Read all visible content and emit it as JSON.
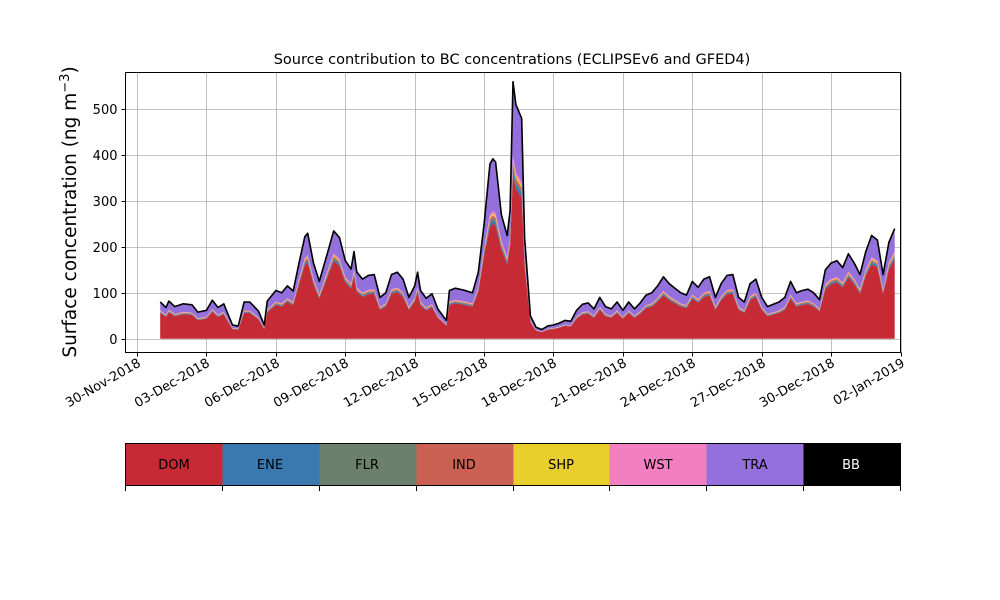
{
  "chart_data": {
    "type": "area",
    "title": "Source contribution to BC concentrations (ECLIPSEv6 and GFED4)",
    "ylabel_main": "Surface concentration (ng m",
    "ylabel_sup": "−3",
    "ylabel_close": ")",
    "xlabel": "",
    "xlim": [
      "2018-11-29T12:00",
      "2019-01-02T00:00"
    ],
    "ylim": [
      -30,
      580
    ],
    "grid": true,
    "stacked": true,
    "x_ticks": [
      "2018-11-30",
      "2018-12-03",
      "2018-12-06",
      "2018-12-09",
      "2018-12-12",
      "2018-12-15",
      "2018-12-18",
      "2018-12-21",
      "2018-12-24",
      "2018-12-27",
      "2018-12-30",
      "2019-01-02"
    ],
    "x_tick_labels": [
      "30-Nov-2018",
      "03-Dec-2018",
      "06-Dec-2018",
      "09-Dec-2018",
      "12-Dec-2018",
      "15-Dec-2018",
      "18-Dec-2018",
      "21-Dec-2018",
      "24-Dec-2018",
      "27-Dec-2018",
      "30-Dec-2018",
      "02-Jan-2019"
    ],
    "y_ticks": [
      0,
      100,
      200,
      300,
      400,
      500
    ],
    "total_line_color": "#000000",
    "total": [
      [
        "2018-12-01T00:00",
        80
      ],
      [
        "2018-12-01T06:00",
        68
      ],
      [
        "2018-12-01T09:00",
        82
      ],
      [
        "2018-12-01T15:00",
        70
      ],
      [
        "2018-12-02T00:00",
        76
      ],
      [
        "2018-12-02T09:00",
        74
      ],
      [
        "2018-12-02T15:00",
        58
      ],
      [
        "2018-12-03T00:00",
        62
      ],
      [
        "2018-12-03T06:00",
        84
      ],
      [
        "2018-12-03T12:00",
        68
      ],
      [
        "2018-12-03T18:00",
        76
      ],
      [
        "2018-12-03T21:00",
        60
      ],
      [
        "2018-12-04T03:00",
        30
      ],
      [
        "2018-12-04T09:00",
        28
      ],
      [
        "2018-12-04T15:00",
        80
      ],
      [
        "2018-12-04T21:00",
        80
      ],
      [
        "2018-12-05T06:00",
        60
      ],
      [
        "2018-12-05T12:00",
        30
      ],
      [
        "2018-12-05T15:00",
        82
      ],
      [
        "2018-12-06T00:00",
        105
      ],
      [
        "2018-12-06T06:00",
        100
      ],
      [
        "2018-12-06T12:00",
        115
      ],
      [
        "2018-12-06T18:00",
        104
      ],
      [
        "2018-12-07T00:00",
        165
      ],
      [
        "2018-12-07T06:00",
        222
      ],
      [
        "2018-12-07T09:00",
        230
      ],
      [
        "2018-12-07T15:00",
        165
      ],
      [
        "2018-12-07T21:00",
        125
      ],
      [
        "2018-12-08T06:00",
        190
      ],
      [
        "2018-12-08T12:00",
        235
      ],
      [
        "2018-12-08T18:00",
        220
      ],
      [
        "2018-12-09T00:00",
        170
      ],
      [
        "2018-12-09T06:00",
        152
      ],
      [
        "2018-12-09T09:00",
        190
      ],
      [
        "2018-12-09T12:00",
        145
      ],
      [
        "2018-12-09T18:00",
        130
      ],
      [
        "2018-12-10T00:00",
        138
      ],
      [
        "2018-12-10T06:00",
        140
      ],
      [
        "2018-12-10T12:00",
        90
      ],
      [
        "2018-12-10T18:00",
        100
      ],
      [
        "2018-12-11T00:00",
        140
      ],
      [
        "2018-12-11T06:00",
        145
      ],
      [
        "2018-12-11T12:00",
        130
      ],
      [
        "2018-12-11T18:00",
        90
      ],
      [
        "2018-12-12T00:00",
        115
      ],
      [
        "2018-12-12T03:00",
        145
      ],
      [
        "2018-12-12T06:00",
        105
      ],
      [
        "2018-12-12T12:00",
        88
      ],
      [
        "2018-12-12T18:00",
        98
      ],
      [
        "2018-12-13T00:00",
        65
      ],
      [
        "2018-12-13T06:00",
        48
      ],
      [
        "2018-12-13T09:00",
        40
      ],
      [
        "2018-12-13T12:00",
        105
      ],
      [
        "2018-12-13T18:00",
        110
      ],
      [
        "2018-12-14T03:00",
        106
      ],
      [
        "2018-12-14T12:00",
        100
      ],
      [
        "2018-12-14T18:00",
        145
      ],
      [
        "2018-12-15T00:00",
        250
      ],
      [
        "2018-12-15T06:00",
        380
      ],
      [
        "2018-12-15T09:00",
        392
      ],
      [
        "2018-12-15T12:00",
        385
      ],
      [
        "2018-12-15T18:00",
        270
      ],
      [
        "2018-12-16T00:00",
        225
      ],
      [
        "2018-12-16T03:00",
        280
      ],
      [
        "2018-12-16T06:00",
        560
      ],
      [
        "2018-12-16T09:00",
        510
      ],
      [
        "2018-12-16T15:00",
        480
      ],
      [
        "2018-12-16T18:00",
        220
      ],
      [
        "2018-12-17T00:00",
        50
      ],
      [
        "2018-12-17T06:00",
        25
      ],
      [
        "2018-12-17T12:00",
        20
      ],
      [
        "2018-12-17T18:00",
        28
      ],
      [
        "2018-12-18T00:00",
        30
      ],
      [
        "2018-12-18T06:00",
        34
      ],
      [
        "2018-12-18T12:00",
        40
      ],
      [
        "2018-12-18T18:00",
        38
      ],
      [
        "2018-12-19T00:00",
        62
      ],
      [
        "2018-12-19T06:00",
        75
      ],
      [
        "2018-12-19T12:00",
        78
      ],
      [
        "2018-12-19T18:00",
        65
      ],
      [
        "2018-12-20T00:00",
        90
      ],
      [
        "2018-12-20T06:00",
        70
      ],
      [
        "2018-12-20T12:00",
        65
      ],
      [
        "2018-12-20T18:00",
        80
      ],
      [
        "2018-12-21T00:00",
        62
      ],
      [
        "2018-12-21T06:00",
        80
      ],
      [
        "2018-12-21T12:00",
        65
      ],
      [
        "2018-12-21T18:00",
        78
      ],
      [
        "2018-12-22T00:00",
        95
      ],
      [
        "2018-12-22T06:00",
        100
      ],
      [
        "2018-12-22T12:00",
        115
      ],
      [
        "2018-12-22T18:00",
        135
      ],
      [
        "2018-12-23T00:00",
        120
      ],
      [
        "2018-12-23T06:00",
        110
      ],
      [
        "2018-12-23T12:00",
        100
      ],
      [
        "2018-12-23T18:00",
        95
      ],
      [
        "2018-12-24T00:00",
        125
      ],
      [
        "2018-12-24T06:00",
        112
      ],
      [
        "2018-12-24T12:00",
        130
      ],
      [
        "2018-12-24T18:00",
        135
      ],
      [
        "2018-12-25T00:00",
        90
      ],
      [
        "2018-12-25T06:00",
        120
      ],
      [
        "2018-12-25T12:00",
        138
      ],
      [
        "2018-12-25T18:00",
        140
      ],
      [
        "2018-12-26T00:00",
        90
      ],
      [
        "2018-12-26T06:00",
        80
      ],
      [
        "2018-12-26T12:00",
        120
      ],
      [
        "2018-12-26T18:00",
        130
      ],
      [
        "2018-12-27T00:00",
        90
      ],
      [
        "2018-12-27T06:00",
        70
      ],
      [
        "2018-12-27T12:00",
        75
      ],
      [
        "2018-12-27T18:00",
        80
      ],
      [
        "2018-12-28T00:00",
        90
      ],
      [
        "2018-12-28T06:00",
        125
      ],
      [
        "2018-12-28T12:00",
        100
      ],
      [
        "2018-12-28T18:00",
        105
      ],
      [
        "2018-12-29T00:00",
        108
      ],
      [
        "2018-12-29T06:00",
        100
      ],
      [
        "2018-12-29T12:00",
        85
      ],
      [
        "2018-12-29T18:00",
        150
      ],
      [
        "2018-12-30T00:00",
        165
      ],
      [
        "2018-12-30T06:00",
        170
      ],
      [
        "2018-12-30T12:00",
        155
      ],
      [
        "2018-12-30T18:00",
        185
      ],
      [
        "2018-12-31T00:00",
        165
      ],
      [
        "2018-12-31T06:00",
        140
      ],
      [
        "2018-12-31T12:00",
        190
      ],
      [
        "2018-12-31T18:00",
        225
      ],
      [
        "2019-01-01T00:00",
        215
      ],
      [
        "2019-01-01T06:00",
        140
      ],
      [
        "2019-01-01T12:00",
        210
      ],
      [
        "2019-01-01T18:00",
        240
      ]
    ]
  }
}
